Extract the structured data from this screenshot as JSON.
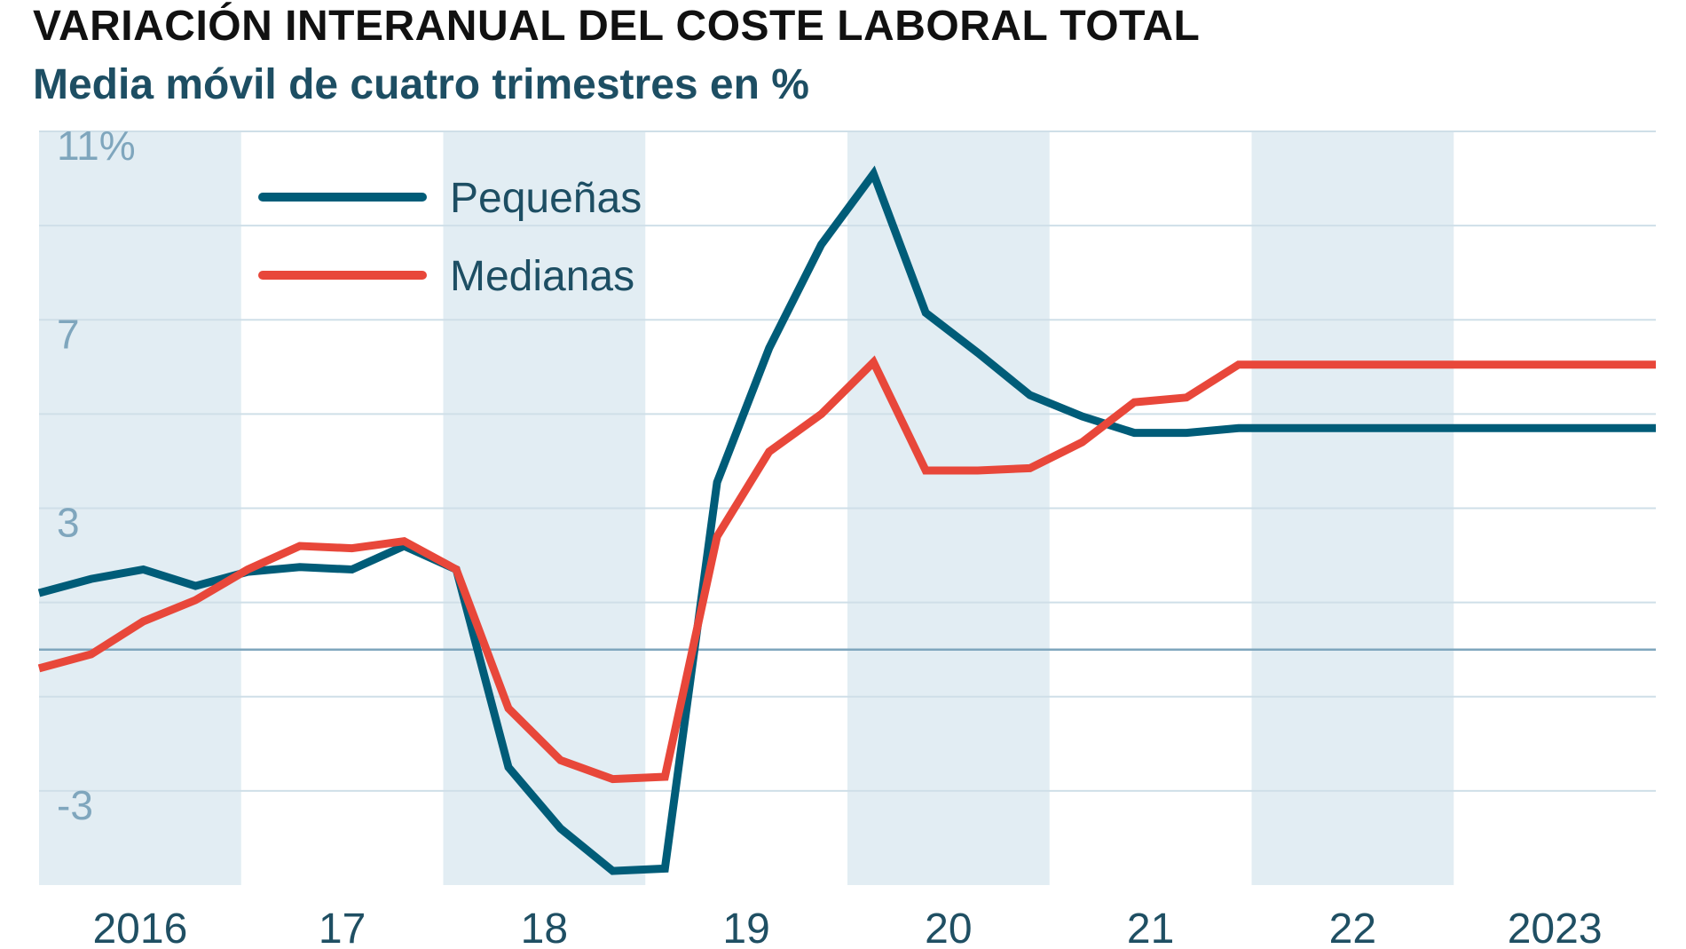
{
  "title": "VARIACIÓN INTERANUAL DEL COSTE LABORAL TOTAL",
  "subtitle": "Media móvil de cuatro trimestres en %",
  "chart_data": {
    "type": "line",
    "title": "VARIACIÓN INTERANUAL DEL COSTE LABORAL TOTAL",
    "subtitle": "Media móvil de cuatro trimestres en %",
    "xlabel": "",
    "ylabel": "",
    "x": [
      "2016-T1",
      "2016-T2",
      "2016-T3",
      "2016-T4",
      "2017-T1",
      "2017-T2",
      "2017-T3",
      "2017-T4",
      "2018-T1",
      "2018-T2",
      "2018-T3",
      "2018-T4",
      "2019-T1",
      "2019-T2",
      "2019-T3",
      "2019-T4",
      "2020-T1",
      "2020-T2",
      "2020-T3",
      "2020-T4",
      "2021-T1",
      "2021-T2",
      "2021-T3",
      "2021-T4",
      "2022-T1",
      "2022-T2",
      "2022-T3",
      "2022-T4",
      "2023-T1",
      "2023-T2",
      "2023-T3",
      "2023-T4"
    ],
    "xticks": [
      "2016",
      "17",
      "18",
      "19",
      "20",
      "21",
      "22",
      "2023"
    ],
    "yticks": [
      {
        "value": 11,
        "label": "11%"
      },
      {
        "value": 7,
        "label": "7"
      },
      {
        "value": 3,
        "label": "3"
      },
      {
        "value": -3,
        "label": "-3"
      }
    ],
    "gridlines": [
      11,
      9,
      7,
      5,
      3,
      1,
      -1,
      -3
    ],
    "ylim": [
      -5,
      11
    ],
    "zero_line": 0,
    "grid": true,
    "alternating_year_shading": true,
    "legend_position": "top-left",
    "series": [
      {
        "name": "Pequeñas",
        "color": "#005c78",
        "values": [
          1.2,
          1.5,
          1.7,
          1.35,
          1.65,
          1.75,
          1.7,
          2.2,
          1.7,
          -2.5,
          -3.8,
          -4.7,
          -4.65,
          3.55,
          6.4,
          8.6,
          10.1,
          7.15,
          6.3,
          5.4,
          4.95,
          4.6,
          4.6,
          4.7,
          4.7,
          4.7,
          4.7,
          4.7,
          4.7,
          4.7,
          4.7,
          4.7
        ]
      },
      {
        "name": "Medianas",
        "color": "#e8473a",
        "values": [
          -0.4,
          -0.1,
          0.6,
          1.05,
          1.7,
          2.2,
          2.15,
          2.3,
          1.7,
          -1.25,
          -2.35,
          -2.75,
          -2.7,
          2.4,
          4.2,
          5.0,
          6.1,
          3.8,
          3.8,
          3.85,
          4.4,
          5.25,
          5.35,
          6.05,
          6.05,
          6.05,
          6.05,
          6.05,
          6.05,
          6.05,
          6.05,
          6.05
        ]
      }
    ]
  }
}
